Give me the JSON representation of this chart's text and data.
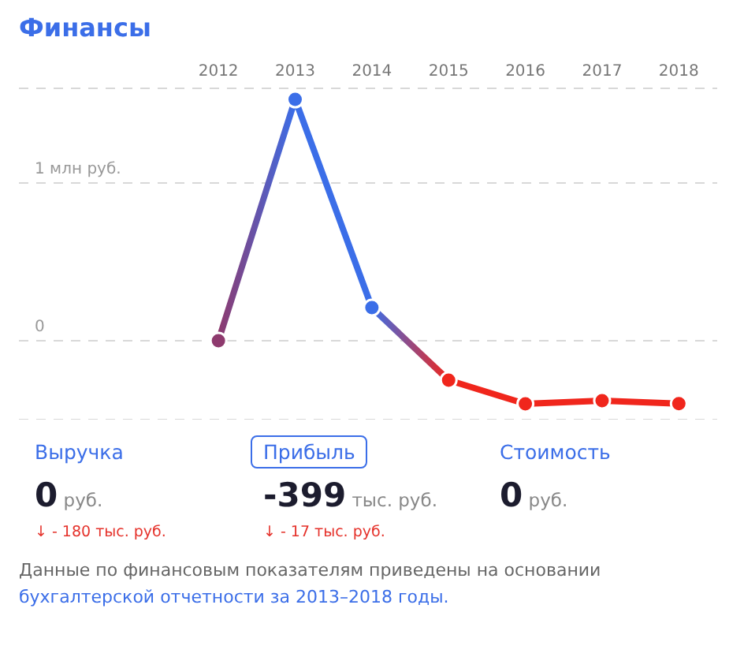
{
  "chart_data": {
    "type": "line",
    "title": "Финансы",
    "categories": [
      "2012",
      "2013",
      "2014",
      "2015",
      "2016",
      "2017",
      "2018"
    ],
    "series": [
      {
        "colors": [
          "#8e3a6e",
          "#3b6ee8",
          "#3b6ee8",
          "#f0261c",
          "#f0261c",
          "#f0261c",
          "#f0261c"
        ],
        "values": [
          0,
          1.53,
          0.21,
          -0.25,
          -0.4,
          -0.38,
          -0.399
        ]
      }
    ],
    "ylim": [
      -0.5,
      1.6
    ],
    "yticks": [
      0,
      {
        "value": 1,
        "label": "1 млн руб."
      }
    ],
    "grid": "y",
    "legend": false,
    "marker": "circle",
    "line_style": "solid",
    "annotations": [
      "Выручка",
      "0 руб.",
      "↓ - 180 тыс. руб.",
      "Прибыль",
      "-399 тыс. руб.",
      "↓ - 17 тыс. руб.",
      "Стоимость",
      "0 руб.",
      "Данные по финансовым показателям приведены на основании",
      "бухгалтерской отчетности за 2013–2018 годы."
    ]
  }
}
